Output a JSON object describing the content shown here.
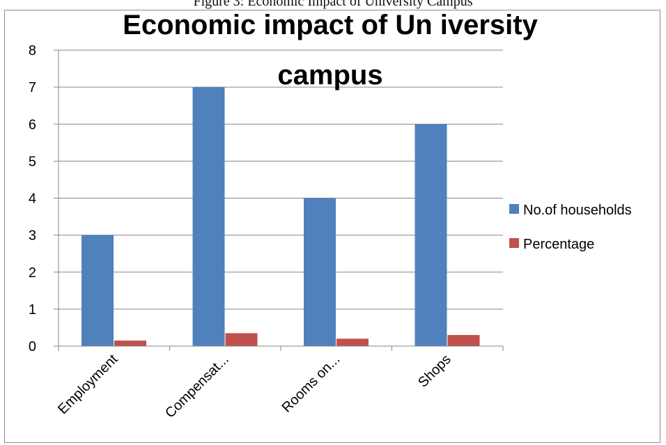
{
  "caption": "Figure 3: Economic Impact of University Campus",
  "chart_data": {
    "type": "bar",
    "title_lines": [
      "Economic impact of Un iversity",
      "campus"
    ],
    "categories": [
      "Employment",
      "Compensat...",
      "Rooms on...",
      "Shops"
    ],
    "series": [
      {
        "name": "No.of households",
        "values": [
          3,
          7,
          4,
          6
        ],
        "color": "#4f81bd"
      },
      {
        "name": "Percentage",
        "values": [
          0.15,
          0.35,
          0.2,
          0.3
        ],
        "color": "#c0504d"
      }
    ],
    "xlabel": "",
    "ylabel": "",
    "ylim": [
      0,
      8
    ],
    "yticks": [
      0,
      1,
      2,
      3,
      4,
      5,
      6,
      7,
      8
    ],
    "grid": true,
    "legend_position": "right"
  }
}
